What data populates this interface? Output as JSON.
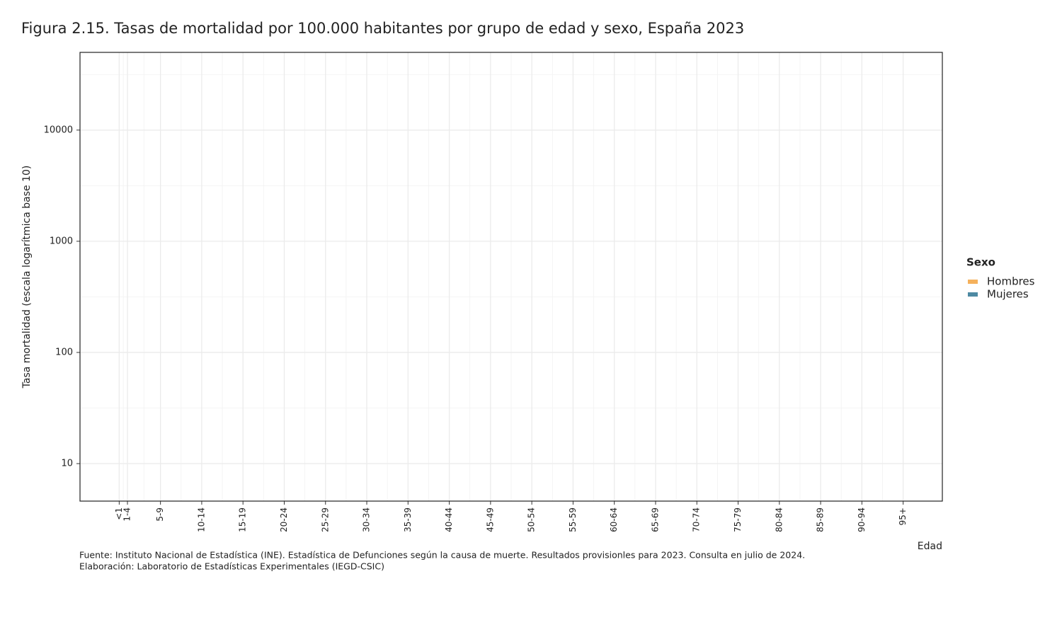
{
  "chart_data": {
    "type": "line",
    "title": "Figura 2.15. Tasas de mortalidad por 100.000 habitantes por grupo de edad y sexo, España 2023",
    "x_label": "Edad",
    "y_label": "Tasa mortalidad (escala logarítmica base 10)",
    "xlim": [
      -4.75,
      99.75
    ],
    "xticks": [
      {
        "value": 0,
        "label": "<1"
      },
      {
        "value": 1,
        "label": "1-4"
      },
      {
        "value": 5,
        "label": "5-9"
      },
      {
        "value": 10,
        "label": "10-14"
      },
      {
        "value": 15,
        "label": "15-19"
      },
      {
        "value": 20,
        "label": "20-24"
      },
      {
        "value": 25,
        "label": "25-29"
      },
      {
        "value": 30,
        "label": "30-34"
      },
      {
        "value": 35,
        "label": "35-39"
      },
      {
        "value": 40,
        "label": "40-44"
      },
      {
        "value": 45,
        "label": "45-49"
      },
      {
        "value": 50,
        "label": "50-54"
      },
      {
        "value": 55,
        "label": "55-59"
      },
      {
        "value": 60,
        "label": "60-64"
      },
      {
        "value": 65,
        "label": "65-69"
      },
      {
        "value": 70,
        "label": "70-74"
      },
      {
        "value": 75,
        "label": "75-79"
      },
      {
        "value": 80,
        "label": "80-84"
      },
      {
        "value": 85,
        "label": "85-89"
      },
      {
        "value": 90,
        "label": "90-94"
      },
      {
        "value": 95,
        "label": "95+"
      }
    ],
    "ylim": [
      4.6,
      50000
    ],
    "yticks": [
      10,
      100,
      1000,
      10000
    ],
    "log_y": true,
    "grid": true,
    "legend_title": "Sexo",
    "legend": "right",
    "series": [
      {
        "name": "Hombres",
        "color": "#f5b15c"
      },
      {
        "name": "Mujeres",
        "color": "#4e8aa3"
      }
    ],
    "caption": [
      "Fuente: Instituto Nacional de Estadística (INE). Estadística de Defunciones según la causa de muerte. Resultados provisionles para 2023. Consulta en julio de 2024.",
      "Elaboración: Laboratorio de Estadísticas Experimentales (IEGD-CSIC)"
    ]
  }
}
